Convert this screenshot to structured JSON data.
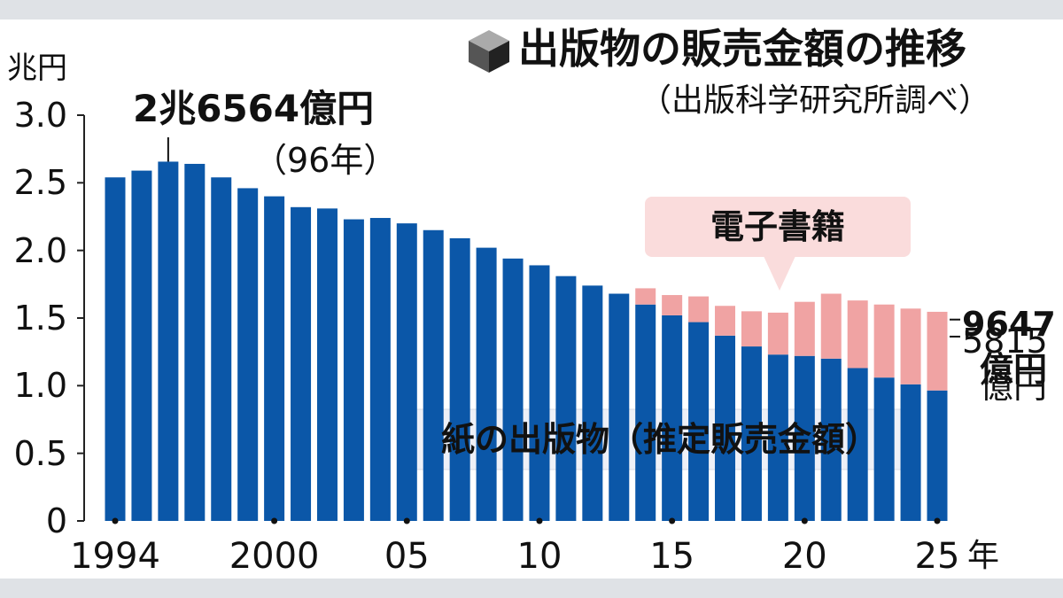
{
  "chart_data": {
    "type": "bar",
    "stacked": true,
    "title": "出版物の販売金額の推移",
    "subtitle": "（出版科学研究所調べ）",
    "y_label": "兆円",
    "x_unit": "年",
    "categories": [
      "1994",
      null,
      null,
      null,
      null,
      null,
      "2000",
      null,
      null,
      null,
      null,
      "05",
      null,
      null,
      null,
      null,
      "10",
      null,
      null,
      null,
      null,
      "15",
      null,
      null,
      null,
      null,
      "20",
      null,
      null,
      null,
      null,
      "25"
    ],
    "series": [
      {
        "name": "紙の出版物（推定販売金額）",
        "color": "#0b57a8",
        "values": [
          2.54,
          2.59,
          2.6564,
          2.64,
          2.54,
          2.46,
          2.4,
          2.32,
          2.31,
          2.23,
          2.24,
          2.2,
          2.15,
          2.09,
          2.02,
          1.94,
          1.89,
          1.81,
          1.74,
          1.68,
          1.6,
          1.52,
          1.47,
          1.37,
          1.29,
          1.23,
          1.22,
          1.2,
          1.13,
          1.06,
          1.01,
          0.9647
        ],
        "value_labels": [
          null,
          null,
          "2兆6564億円",
          null,
          null,
          null,
          null,
          null,
          null,
          null,
          null,
          null,
          null,
          null,
          null,
          null,
          null,
          null,
          null,
          null,
          null,
          null,
          null,
          null,
          null,
          null,
          null,
          null,
          null,
          null,
          null,
          "9647億円"
        ]
      },
      {
        "name": "電子書籍",
        "color": "#f0a3a3",
        "values": [
          null,
          null,
          null,
          null,
          null,
          null,
          null,
          null,
          null,
          null,
          null,
          null,
          null,
          null,
          null,
          null,
          null,
          null,
          null,
          null,
          0.12,
          0.15,
          0.19,
          0.22,
          0.26,
          0.31,
          0.4,
          0.48,
          0.5,
          0.54,
          0.56,
          0.5815
        ],
        "value_labels": [
          null,
          null,
          null,
          null,
          null,
          null,
          null,
          null,
          null,
          null,
          null,
          null,
          null,
          null,
          null,
          null,
          null,
          null,
          null,
          null,
          null,
          null,
          null,
          null,
          null,
          null,
          null,
          null,
          null,
          null,
          null,
          "5815億円"
        ]
      }
    ],
    "annotations": [
      {
        "text": "（96年）"
      }
    ],
    "ylim": [
      0,
      3
    ],
    "yticks": [
      0,
      0.5,
      {
        "value": 1,
        "label": "1.0"
      },
      1.5,
      {
        "value": 2,
        "label": "2.0"
      },
      2.5,
      {
        "value": 3,
        "label": "3.0"
      }
    ]
  }
}
